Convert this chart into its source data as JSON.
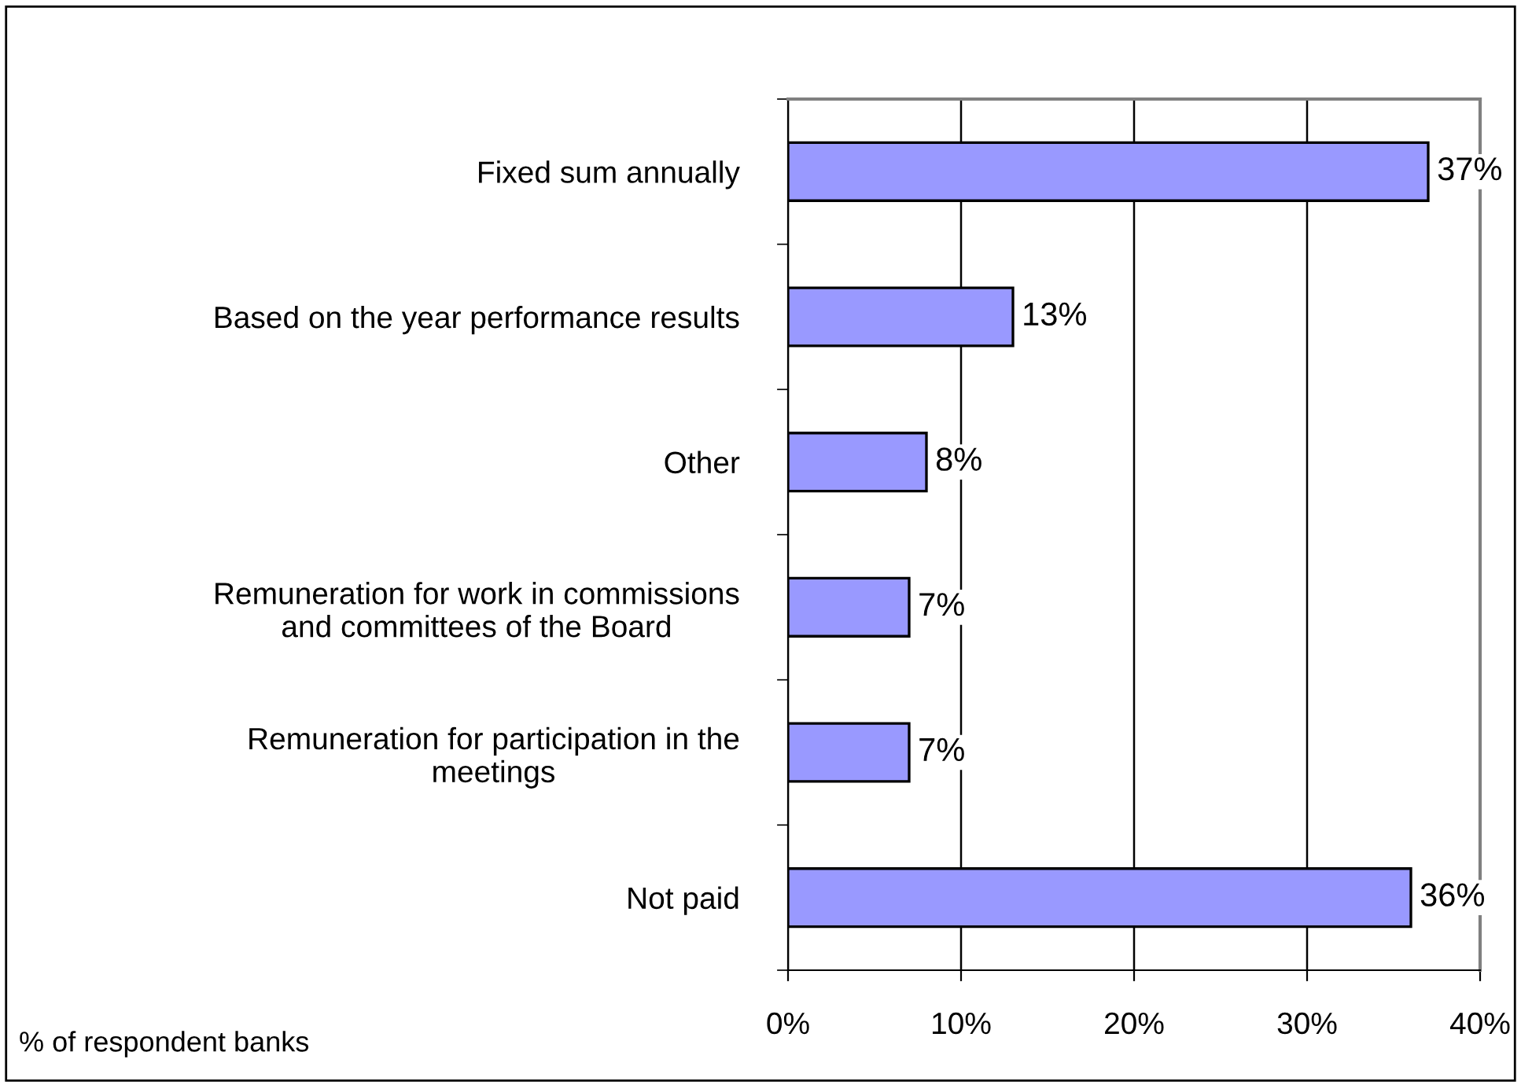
{
  "chart_data": {
    "type": "bar",
    "orientation": "horizontal",
    "categories": [
      "Fixed sum annually",
      "Based on the year performance results",
      "Other",
      "Remuneration for work in commissions\nand committees of the Board",
      "Remuneration for participation in the\nmeetings",
      "Not paid"
    ],
    "values": [
      37,
      13,
      8,
      7,
      7,
      36
    ],
    "value_labels": [
      "37%",
      "13%",
      "8%",
      "7%",
      "7%",
      "36%"
    ],
    "color": "#9999ff",
    "xlim": [
      0,
      40
    ],
    "xticks": [
      {
        "value": 0,
        "label": "0%"
      },
      {
        "value": 10,
        "label": "10%"
      },
      {
        "value": 20,
        "label": "20%"
      },
      {
        "value": 30,
        "label": "30%"
      },
      {
        "value": 40,
        "label": "40%"
      }
    ],
    "grid": "x",
    "legend": false,
    "annotations": [
      "% of respondent banks"
    ]
  }
}
